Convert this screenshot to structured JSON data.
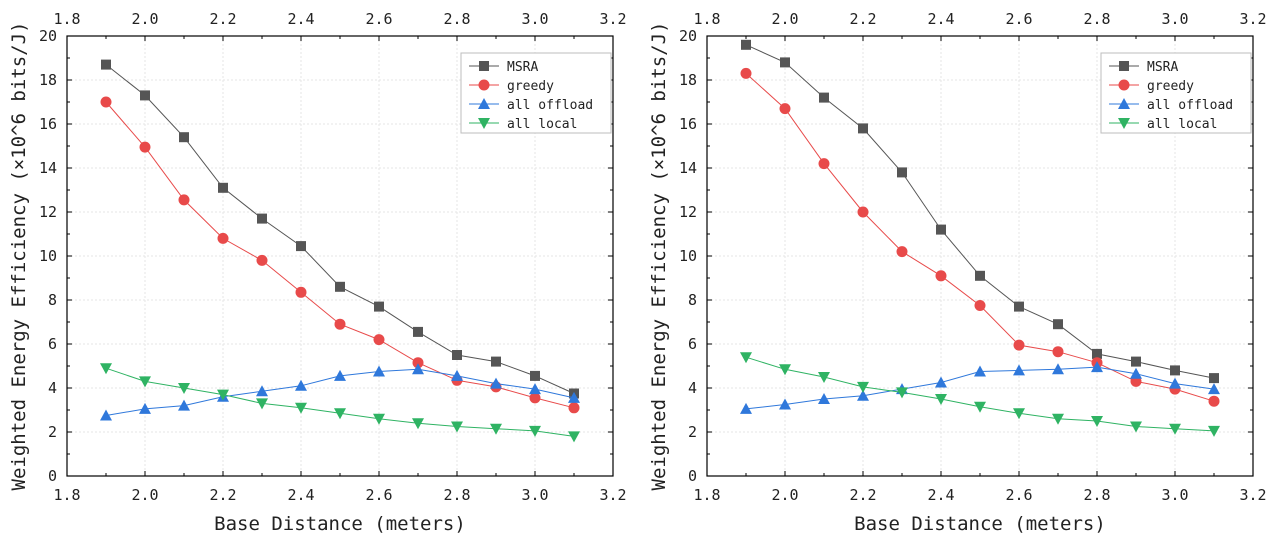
{
  "charts": [
    {
      "xlabel": "Base Distance (meters)",
      "ylabel": "Weighted Energy Efficiency (×10^6 bits/J)",
      "x_ticks": [
        "1.8",
        "2.0",
        "2.2",
        "2.4",
        "2.6",
        "2.8",
        "3.0",
        "3.2"
      ],
      "y_ticks": [
        "0",
        "2",
        "4",
        "6",
        "8",
        "10",
        "12",
        "14",
        "16",
        "18",
        "20"
      ],
      "legend": [
        "MSRA",
        "greedy",
        "all offload",
        "all local"
      ]
    },
    {
      "xlabel": "Base Distance (meters)",
      "ylabel": "Weighted Energy Efficiency (×10^6 bits/J)",
      "x_ticks": [
        "1.8",
        "2.0",
        "2.2",
        "2.4",
        "2.6",
        "2.8",
        "3.0",
        "3.2"
      ],
      "y_ticks": [
        "0",
        "2",
        "4",
        "6",
        "8",
        "10",
        "12",
        "14",
        "16",
        "18",
        "20"
      ],
      "legend": [
        "MSRA",
        "greedy",
        "all offload",
        "all local"
      ]
    }
  ],
  "chart_data": [
    {
      "type": "line",
      "xlabel": "Base Distance (meters)",
      "ylabel": "Weighted Energy Efficiency (×10^6 bits/J)",
      "xlim": [
        1.8,
        3.2
      ],
      "ylim": [
        0,
        20
      ],
      "grid": true,
      "legend_position": "top-right",
      "secondary_x_axis_top": true,
      "x": [
        1.9,
        2.0,
        2.1,
        2.2,
        2.3,
        2.4,
        2.5,
        2.6,
        2.7,
        2.8,
        2.9,
        3.0,
        3.1
      ],
      "series": [
        {
          "name": "MSRA",
          "marker": "square",
          "color": "#555555",
          "values": [
            18.7,
            17.3,
            15.4,
            13.1,
            11.7,
            10.45,
            8.6,
            7.7,
            6.55,
            5.5,
            5.2,
            4.55,
            3.75
          ]
        },
        {
          "name": "greedy",
          "marker": "circle",
          "color": "#e84a4a",
          "values": [
            17.0,
            14.95,
            12.55,
            10.8,
            9.8,
            8.35,
            6.9,
            6.2,
            5.15,
            4.35,
            4.05,
            3.55,
            3.1
          ]
        },
        {
          "name": "all offload",
          "marker": "triangle-up",
          "color": "#2f78db",
          "values": [
            2.75,
            3.05,
            3.2,
            3.6,
            3.85,
            4.1,
            4.55,
            4.75,
            4.85,
            4.55,
            4.2,
            3.95,
            3.55
          ]
        },
        {
          "name": "all local",
          "marker": "triangle-down",
          "color": "#2fb363",
          "values": [
            4.9,
            4.3,
            4.0,
            3.7,
            3.3,
            3.1,
            2.85,
            2.6,
            2.4,
            2.25,
            2.15,
            2.05,
            1.8
          ]
        }
      ]
    },
    {
      "type": "line",
      "xlabel": "Base Distance (meters)",
      "ylabel": "Weighted Energy Efficiency (×10^6 bits/J)",
      "xlim": [
        1.8,
        3.2
      ],
      "ylim": [
        0,
        20
      ],
      "grid": true,
      "legend_position": "top-right",
      "secondary_x_axis_top": true,
      "x": [
        1.9,
        2.0,
        2.1,
        2.2,
        2.3,
        2.4,
        2.5,
        2.6,
        2.7,
        2.8,
        2.9,
        3.0,
        3.1
      ],
      "series": [
        {
          "name": "MSRA",
          "marker": "square",
          "color": "#555555",
          "values": [
            19.6,
            18.8,
            17.2,
            15.8,
            13.8,
            11.2,
            9.1,
            7.7,
            6.9,
            5.55,
            5.2,
            4.8,
            4.45
          ]
        },
        {
          "name": "greedy",
          "marker": "circle",
          "color": "#e84a4a",
          "values": [
            18.3,
            16.7,
            14.2,
            12.0,
            10.2,
            9.1,
            7.75,
            5.95,
            5.65,
            5.15,
            4.3,
            3.95,
            3.4
          ]
        },
        {
          "name": "all offload",
          "marker": "triangle-up",
          "color": "#2f78db",
          "values": [
            3.05,
            3.25,
            3.5,
            3.65,
            3.95,
            4.25,
            4.75,
            4.8,
            4.85,
            4.95,
            4.65,
            4.2,
            3.95
          ]
        },
        {
          "name": "all local",
          "marker": "triangle-down",
          "color": "#2fb363",
          "values": [
            5.4,
            4.85,
            4.5,
            4.05,
            3.8,
            3.5,
            3.15,
            2.85,
            2.6,
            2.5,
            2.25,
            2.15,
            2.05
          ]
        }
      ]
    }
  ]
}
